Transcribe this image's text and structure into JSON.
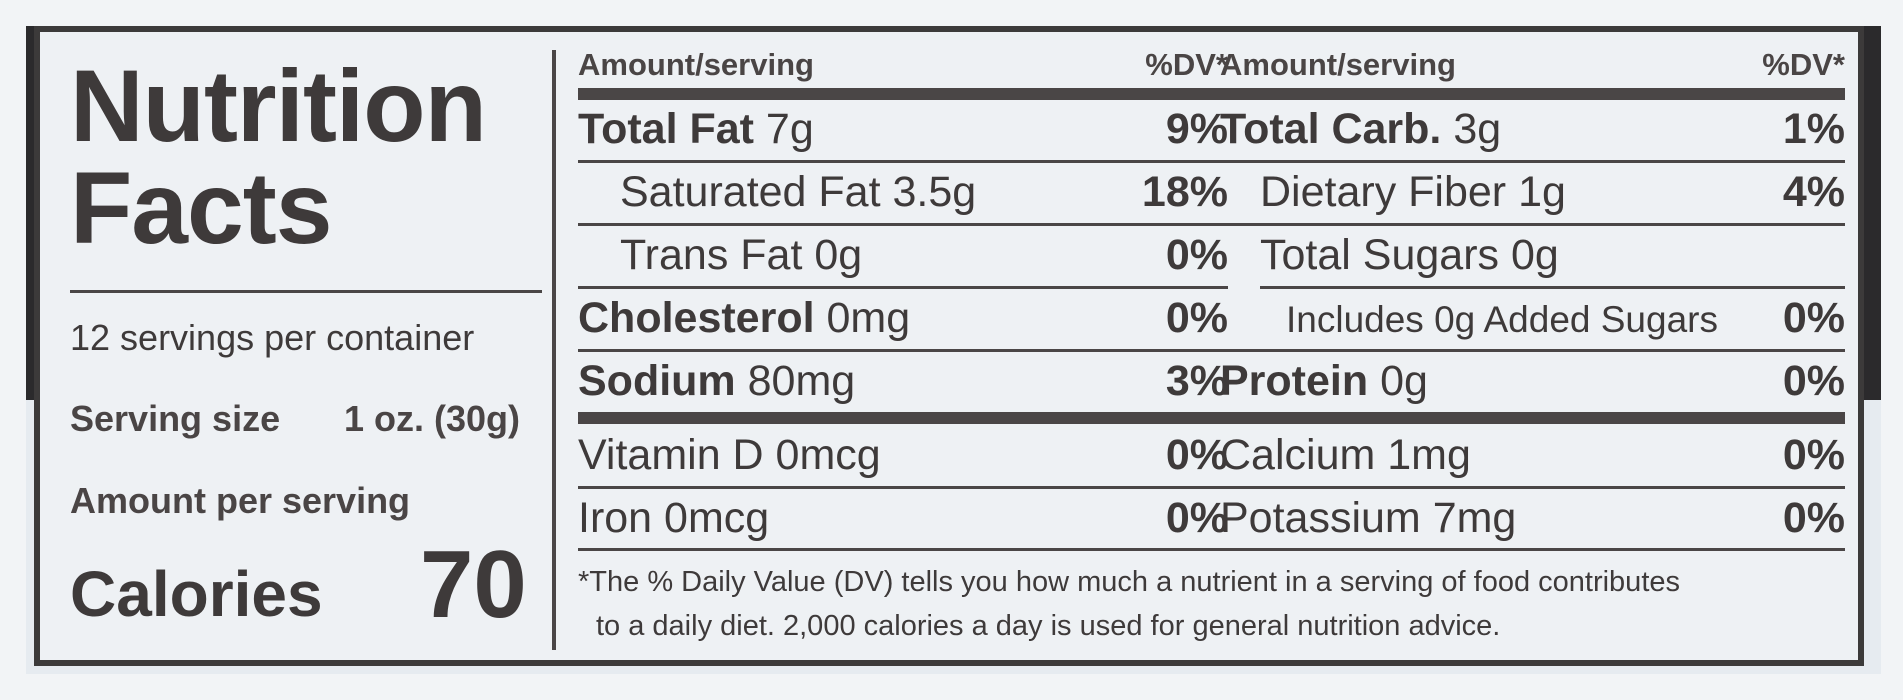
{
  "label": {
    "title_line1": "Nutrition",
    "title_line2": "Facts",
    "servings": "12 servings per container",
    "serving_size_label": "Serving size",
    "serving_size_value": "1 oz. (30g)",
    "amount_per_serving": "Amount per serving",
    "calories_label": "Calories",
    "calories_value": "70"
  },
  "left_table": {
    "header_amount": "Amount/serving",
    "header_dv": "%DV*",
    "rows": [
      {
        "name": "Total Fat",
        "amount": " 7g",
        "dv": "9%"
      },
      {
        "name": "Saturated Fat 3.5g",
        "amount": "",
        "dv": "18%"
      },
      {
        "name": "Trans Fat 0g",
        "amount": "",
        "dv": "0%"
      },
      {
        "name": "Cholesterol",
        "amount": " 0mg",
        "dv": "0%"
      },
      {
        "name": "Sodium",
        "amount": " 80mg",
        "dv": "3%"
      },
      {
        "name": "Vitamin D 0mcg",
        "amount": "",
        "dv": "0%"
      },
      {
        "name": "Iron 0mcg",
        "amount": "",
        "dv": "0%"
      }
    ]
  },
  "right_table": {
    "header_amount": "Amount/serving",
    "header_dv": "%DV*",
    "rows": [
      {
        "name": "Total Carb.",
        "amount": " 3g",
        "dv": "1%"
      },
      {
        "name": "Dietary Fiber 1g",
        "amount": "",
        "dv": "4%"
      },
      {
        "name": "Total Sugars 0g",
        "amount": "",
        "dv": ""
      },
      {
        "name": "Includes 0g Added Sugars",
        "amount": "",
        "dv": "0%"
      },
      {
        "name": "Protein",
        "amount": " 0g",
        "dv": "0%"
      },
      {
        "name": "Calcium 1mg",
        "amount": "",
        "dv": "0%"
      },
      {
        "name": "Potassium 7mg",
        "amount": "",
        "dv": "0%"
      }
    ]
  },
  "footnote": {
    "line1": "*The % Daily Value (DV) tells you how much a nutrient in a serving of food contributes",
    "line2": "to a daily diet. 2,000 calories a day is used for general nutrition advice."
  }
}
